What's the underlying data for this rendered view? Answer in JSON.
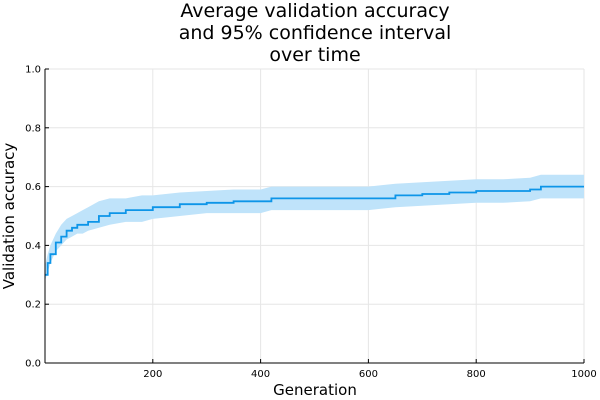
{
  "chart_data": {
    "type": "line",
    "title_lines": [
      "Average validation accuracy",
      "and 95% confidence interval",
      "over time"
    ],
    "xlabel": "Generation",
    "ylabel": "Validation accuracy",
    "xlim": [
      0,
      1000
    ],
    "ylim": [
      0.0,
      1.0
    ],
    "x_ticks": [
      200,
      400,
      600,
      800,
      1000
    ],
    "x_tick_labels": [
      "200",
      "400",
      "600",
      "800",
      "1000"
    ],
    "y_ticks": [
      0.0,
      0.2,
      0.4,
      0.6,
      0.8,
      1.0
    ],
    "y_tick_labels": [
      "0.0",
      "0.2",
      "0.4",
      "0.6",
      "0.8",
      "1.0"
    ],
    "grid": true,
    "legend": "none",
    "colors": {
      "line": "#0d95e8",
      "band": "#bfe3fa"
    },
    "series": [
      {
        "x": [
          0,
          5,
          10,
          20,
          30,
          40,
          50,
          60,
          70,
          80,
          100,
          120,
          150,
          180,
          200,
          250,
          300,
          350,
          400,
          420,
          450,
          500,
          550,
          600,
          650,
          700,
          750,
          800,
          850,
          900,
          920,
          950,
          1000
        ],
        "mean": [
          0.3,
          0.34,
          0.37,
          0.41,
          0.43,
          0.45,
          0.46,
          0.47,
          0.47,
          0.48,
          0.5,
          0.51,
          0.52,
          0.52,
          0.53,
          0.54,
          0.545,
          0.55,
          0.55,
          0.56,
          0.56,
          0.56,
          0.56,
          0.56,
          0.57,
          0.575,
          0.58,
          0.585,
          0.585,
          0.59,
          0.6,
          0.6,
          0.6
        ],
        "lower": [
          0.28,
          0.31,
          0.34,
          0.38,
          0.4,
          0.42,
          0.43,
          0.44,
          0.44,
          0.45,
          0.46,
          0.47,
          0.48,
          0.48,
          0.49,
          0.5,
          0.51,
          0.51,
          0.51,
          0.52,
          0.52,
          0.52,
          0.52,
          0.52,
          0.53,
          0.535,
          0.54,
          0.545,
          0.545,
          0.55,
          0.56,
          0.56,
          0.56
        ],
        "upper": [
          0.33,
          0.37,
          0.4,
          0.44,
          0.47,
          0.49,
          0.5,
          0.51,
          0.52,
          0.53,
          0.55,
          0.56,
          0.56,
          0.57,
          0.57,
          0.58,
          0.585,
          0.59,
          0.59,
          0.6,
          0.6,
          0.6,
          0.6,
          0.6,
          0.61,
          0.615,
          0.62,
          0.625,
          0.625,
          0.63,
          0.64,
          0.64,
          0.64
        ]
      }
    ]
  }
}
